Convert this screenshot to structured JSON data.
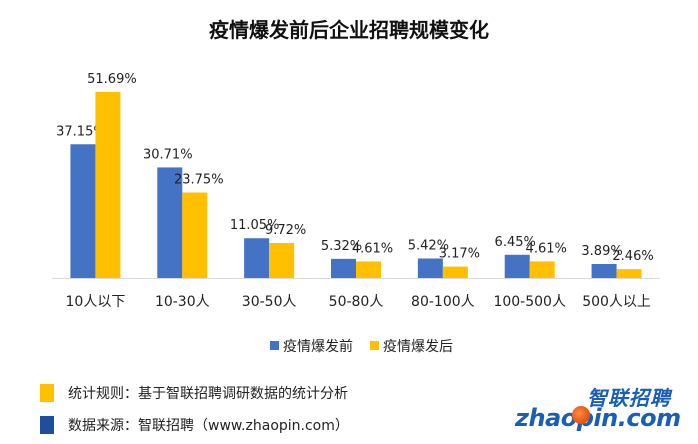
{
  "chart_data": {
    "type": "bar",
    "title": "疫情爆发前后企业招聘规模变化",
    "categories": [
      "10人以下",
      "10-30人",
      "30-50人",
      "50-80人",
      "80-100人",
      "100-500人",
      "500人以上"
    ],
    "series": [
      {
        "name": "疫情爆发前",
        "color": "#4472c4",
        "values": [
          37.15,
          30.71,
          11.05,
          5.32,
          5.42,
          6.45,
          3.89
        ],
        "labels": [
          "37.15%",
          "30.71%",
          "11.05%",
          "5.32%",
          "5.42%",
          "6.45%",
          "3.89%"
        ]
      },
      {
        "name": "疫情爆发后",
        "color": "#ffc000",
        "values": [
          51.69,
          23.75,
          9.72,
          4.61,
          3.17,
          4.61,
          2.46
        ],
        "labels": [
          "51.69%",
          "23.75%",
          "9.72%",
          "4.61%",
          "3.17%",
          "4.61%",
          "2.46%"
        ]
      }
    ],
    "ylim": [
      0,
      55
    ],
    "grid": false,
    "legend_position": "bottom"
  },
  "footnotes": [
    {
      "text": "统计规则：基于智联招聘调研数据的统计分析",
      "color": "#ffc000"
    },
    {
      "text": "数据来源：智联招聘（www.zhaopin.com）",
      "color": "#1f4e9c"
    }
  ],
  "logo": {
    "cn": "智联招聘",
    "en": "zhaopin.com"
  }
}
